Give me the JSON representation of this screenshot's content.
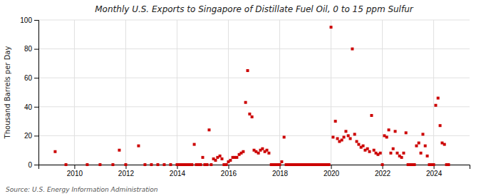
{
  "chart_data": {
    "type": "scatter",
    "title": "Monthly U.S. Exports to Singapore of Distillate Fuel Oil, 0 to 15 ppm Sulfur",
    "y_label": "Thousand Barrels per Day",
    "annotations": [
      "Source: U.S. Energy Information Administration"
    ],
    "color": "#cc0000",
    "marker": "square",
    "grid": true,
    "xlim": [
      2008.6,
      2025.4
    ],
    "xticks": [
      2010,
      2012,
      2014,
      2016,
      2018,
      2020,
      2022,
      2024
    ],
    "ylim": [
      0,
      100
    ],
    "yticks": [
      0,
      20,
      40,
      60,
      80,
      100
    ],
    "x": [
      2009.25,
      2009.67,
      2010.5,
      2011.0,
      2011.5,
      2011.75,
      2012.0,
      2012.5,
      2012.75,
      2013.0,
      2013.25,
      2013.5,
      2013.75,
      2014.0,
      2014.08,
      2014.17,
      2014.25,
      2014.33,
      2014.42,
      2014.5,
      2014.58,
      2014.67,
      2014.75,
      2014.83,
      2014.92,
      2015.0,
      2015.08,
      2015.17,
      2015.25,
      2015.33,
      2015.42,
      2015.5,
      2015.58,
      2015.67,
      2015.75,
      2015.83,
      2015.92,
      2016.0,
      2016.08,
      2016.17,
      2016.25,
      2016.33,
      2016.42,
      2016.5,
      2016.58,
      2016.67,
      2016.75,
      2016.83,
      2016.92,
      2017.0,
      2017.08,
      2017.17,
      2017.25,
      2017.33,
      2017.42,
      2017.5,
      2017.58,
      2017.67,
      2017.75,
      2017.83,
      2017.92,
      2018.0,
      2018.08,
      2018.17,
      2018.25,
      2018.33,
      2018.42,
      2018.5,
      2018.58,
      2018.67,
      2018.75,
      2018.83,
      2018.92,
      2019.0,
      2019.08,
      2019.17,
      2019.25,
      2019.33,
      2019.42,
      2019.5,
      2019.58,
      2019.67,
      2019.75,
      2019.83,
      2019.92,
      2020.0,
      2020.08,
      2020.17,
      2020.25,
      2020.33,
      2020.42,
      2020.5,
      2020.58,
      2020.67,
      2020.75,
      2020.83,
      2020.92,
      2021.0,
      2021.08,
      2021.17,
      2021.25,
      2021.33,
      2021.42,
      2021.5,
      2021.58,
      2021.67,
      2021.75,
      2021.83,
      2021.92,
      2022.0,
      2022.08,
      2022.17,
      2022.25,
      2022.33,
      2022.42,
      2022.5,
      2022.58,
      2022.67,
      2022.75,
      2022.83,
      2022.92,
      2023.0,
      2023.08,
      2023.17,
      2023.25,
      2023.33,
      2023.42,
      2023.5,
      2023.58,
      2023.67,
      2023.75,
      2023.83,
      2023.92,
      2024.0,
      2024.08,
      2024.17,
      2024.25,
      2024.33,
      2024.42,
      2024.5,
      2024.58
    ],
    "values": [
      9,
      0,
      0,
      0,
      0,
      10,
      0,
      13,
      0,
      0,
      0,
      0,
      0,
      0,
      0,
      0,
      0,
      0,
      0,
      0,
      0,
      14,
      0,
      0,
      0,
      5,
      0,
      0,
      24,
      0,
      4,
      3,
      5,
      6,
      4,
      0,
      0,
      2,
      3,
      5,
      5,
      5,
      7,
      8,
      9,
      43,
      65,
      35,
      33,
      10,
      9,
      8,
      10,
      11,
      9,
      10,
      8,
      0,
      0,
      0,
      0,
      0,
      2,
      19,
      0,
      0,
      0,
      0,
      0,
      0,
      0,
      0,
      0,
      0,
      0,
      0,
      0,
      0,
      0,
      0,
      0,
      0,
      0,
      0,
      0,
      95,
      19,
      30,
      18,
      16,
      17,
      19,
      23,
      20,
      18,
      80,
      21,
      16,
      14,
      12,
      13,
      10,
      11,
      9,
      34,
      10,
      8,
      7,
      8,
      0,
      20,
      19,
      24,
      8,
      11,
      23,
      8,
      6,
      5,
      8,
      22,
      0,
      0,
      0,
      0,
      13,
      15,
      8,
      21,
      13,
      6,
      0,
      0,
      0,
      41,
      46,
      27,
      15,
      14,
      0,
      0
    ]
  }
}
